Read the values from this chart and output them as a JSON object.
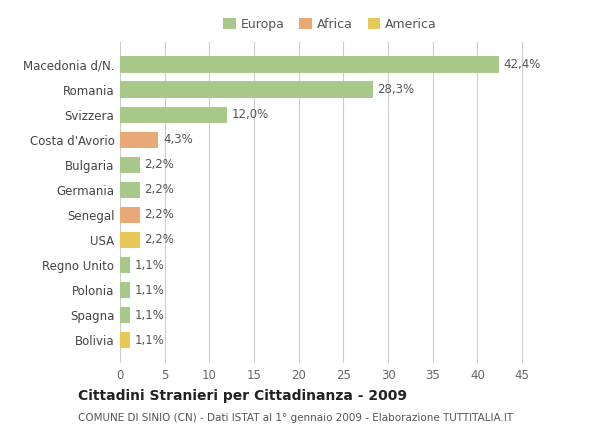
{
  "categories": [
    "Macedonia d/N.",
    "Romania",
    "Svizzera",
    "Costa d'Avorio",
    "Bulgaria",
    "Germania",
    "Senegal",
    "USA",
    "Regno Unito",
    "Polonia",
    "Spagna",
    "Bolivia"
  ],
  "values": [
    42.4,
    28.3,
    12.0,
    4.3,
    2.2,
    2.2,
    2.2,
    2.2,
    1.1,
    1.1,
    1.1,
    1.1
  ],
  "labels": [
    "42,4%",
    "28,3%",
    "12,0%",
    "4,3%",
    "2,2%",
    "2,2%",
    "2,2%",
    "2,2%",
    "1,1%",
    "1,1%",
    "1,1%",
    "1,1%"
  ],
  "bar_colors": [
    "#a8c98a",
    "#a8c98a",
    "#a8c98a",
    "#e8a878",
    "#a8c98a",
    "#a8c98a",
    "#e8a878",
    "#e8c858",
    "#a8c98a",
    "#a8c98a",
    "#a8c98a",
    "#e8c858"
  ],
  "legend_labels": [
    "Europa",
    "Africa",
    "America"
  ],
  "legend_colors": [
    "#a8c98a",
    "#e8a878",
    "#e8c858"
  ],
  "title": "Cittadini Stranieri per Cittadinanza - 2009",
  "subtitle": "COMUNE DI SINIO (CN) - Dati ISTAT al 1° gennaio 2009 - Elaborazione TUTTITALIA.IT",
  "xlim": [
    0,
    47
  ],
  "xticks": [
    0,
    5,
    10,
    15,
    20,
    25,
    30,
    35,
    40,
    45
  ],
  "background_color": "#ffffff",
  "grid_color": "#cccccc",
  "bar_height": 0.65,
  "title_fontsize": 10,
  "subtitle_fontsize": 7.5,
  "tick_fontsize": 8.5,
  "label_fontsize": 8.5,
  "legend_fontsize": 9
}
